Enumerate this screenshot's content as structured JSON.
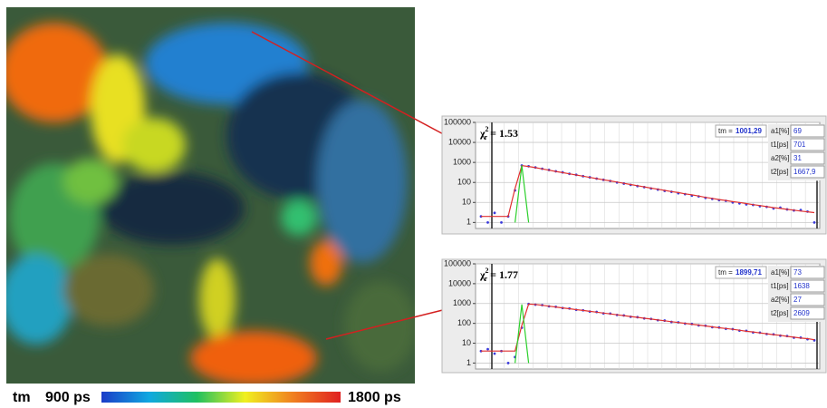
{
  "colorbar": {
    "label": "tm",
    "min": "900 ps",
    "max": "1800 ps"
  },
  "chart_data": [
    {
      "type": "scatter",
      "log": true,
      "grid": true,
      "chi_symbol": "χ",
      "chi_sub": "r",
      "chi_sup": "2",
      "chi_text": "= 1.53",
      "tm_label": "tm =",
      "tm_value": "1001,29",
      "params": [
        [
          "a1[%]",
          "69"
        ],
        [
          "t1[ps]",
          "701"
        ],
        [
          "a2[%]",
          "31"
        ],
        [
          "t2[ps]",
          "1667,9"
        ]
      ],
      "ylim": [
        0.5,
        100000
      ],
      "yticks": [
        1,
        10,
        100,
        1000,
        10000,
        100000
      ],
      "series": [
        {
          "color": "#3a3adc",
          "style": "points",
          "values": [
            2,
            1,
            3,
            1,
            2,
            40,
            700,
            640,
            560,
            480,
            420,
            360,
            320,
            270,
            240,
            205,
            180,
            155,
            135,
            118,
            100,
            88,
            76,
            66,
            58,
            50,
            44,
            38,
            34,
            29,
            26,
            22,
            20,
            17,
            15,
            13,
            12,
            10,
            9,
            8,
            7.5,
            6.5,
            6,
            5,
            5.5,
            4.5,
            4,
            4.2,
            3.5,
            1
          ]
        },
        {
          "color": "#e03030",
          "style": "line",
          "values": [
            2,
            2,
            2,
            2,
            2,
            50,
            690,
            630,
            550,
            475,
            410,
            355,
            310,
            270,
            235,
            205,
            178,
            155,
            136,
            119,
            104,
            90,
            79,
            69,
            60,
            52,
            46,
            40,
            35,
            31,
            27,
            24,
            21,
            18,
            16,
            14,
            12.5,
            11,
            10,
            8.8,
            7.8,
            7,
            6.2,
            5.5,
            5,
            4.5,
            4.1,
            3.7,
            3.4,
            3.1
          ]
        },
        {
          "color": "#2bd02b",
          "style": "line",
          "values": [
            null,
            null,
            null,
            null,
            null,
            1,
            700,
            1,
            null,
            null,
            null,
            null,
            null,
            null,
            null,
            null,
            null,
            null,
            null,
            null,
            null,
            null,
            null,
            null,
            null,
            null,
            null,
            null,
            null,
            null,
            null,
            null,
            null,
            null,
            null,
            null,
            null,
            null,
            null,
            null,
            null,
            null,
            null,
            null,
            null,
            null,
            null,
            null,
            null,
            null
          ]
        }
      ]
    },
    {
      "type": "scatter",
      "log": true,
      "grid": true,
      "chi_symbol": "χ",
      "chi_sub": "r",
      "chi_sup": "2",
      "chi_text": "= 1.77",
      "tm_label": "tm =",
      "tm_value": "1899,71",
      "params": [
        [
          "a1[%]",
          "73"
        ],
        [
          "t1[ps]",
          "1638"
        ],
        [
          "a2[%]",
          "27"
        ],
        [
          "t2[ps]",
          "2609"
        ]
      ],
      "ylim": [
        0.5,
        100000
      ],
      "yticks": [
        1,
        10,
        100,
        1000,
        10000,
        100000
      ],
      "series": [
        {
          "color": "#3a3adc",
          "style": "points",
          "values": [
            4,
            5,
            3,
            4,
            1,
            2,
            60,
            950,
            880,
            830,
            720,
            680,
            590,
            560,
            480,
            455,
            395,
            375,
            320,
            310,
            265,
            250,
            215,
            205,
            178,
            168,
            145,
            138,
            118,
            113,
            97,
            93,
            79,
            76,
            64,
            62,
            53,
            51,
            43,
            42,
            35,
            34,
            29,
            28,
            24,
            23,
            19,
            19,
            16,
            14
          ]
        },
        {
          "color": "#e03030",
          "style": "line",
          "values": [
            4,
            4,
            4,
            4,
            4,
            4,
            80,
            940,
            900,
            815,
            737,
            667,
            604,
            546,
            494,
            447,
            405,
            366,
            331,
            300,
            271,
            245,
            222,
            201,
            182,
            164,
            149,
            135,
            122,
            110,
            100,
            90,
            82,
            74,
            67,
            60,
            55,
            50,
            45,
            40,
            37,
            33,
            30,
            27,
            25,
            22,
            20,
            18,
            17,
            15
          ]
        },
        {
          "color": "#2bd02b",
          "style": "line",
          "values": [
            null,
            null,
            null,
            null,
            null,
            1,
            900,
            1,
            null,
            null,
            null,
            null,
            null,
            null,
            null,
            null,
            null,
            null,
            null,
            null,
            null,
            null,
            null,
            null,
            null,
            null,
            null,
            null,
            null,
            null,
            null,
            null,
            null,
            null,
            null,
            null,
            null,
            null,
            null,
            null,
            null,
            null,
            null,
            null,
            null,
            null,
            null,
            null,
            null,
            null
          ]
        }
      ]
    }
  ]
}
